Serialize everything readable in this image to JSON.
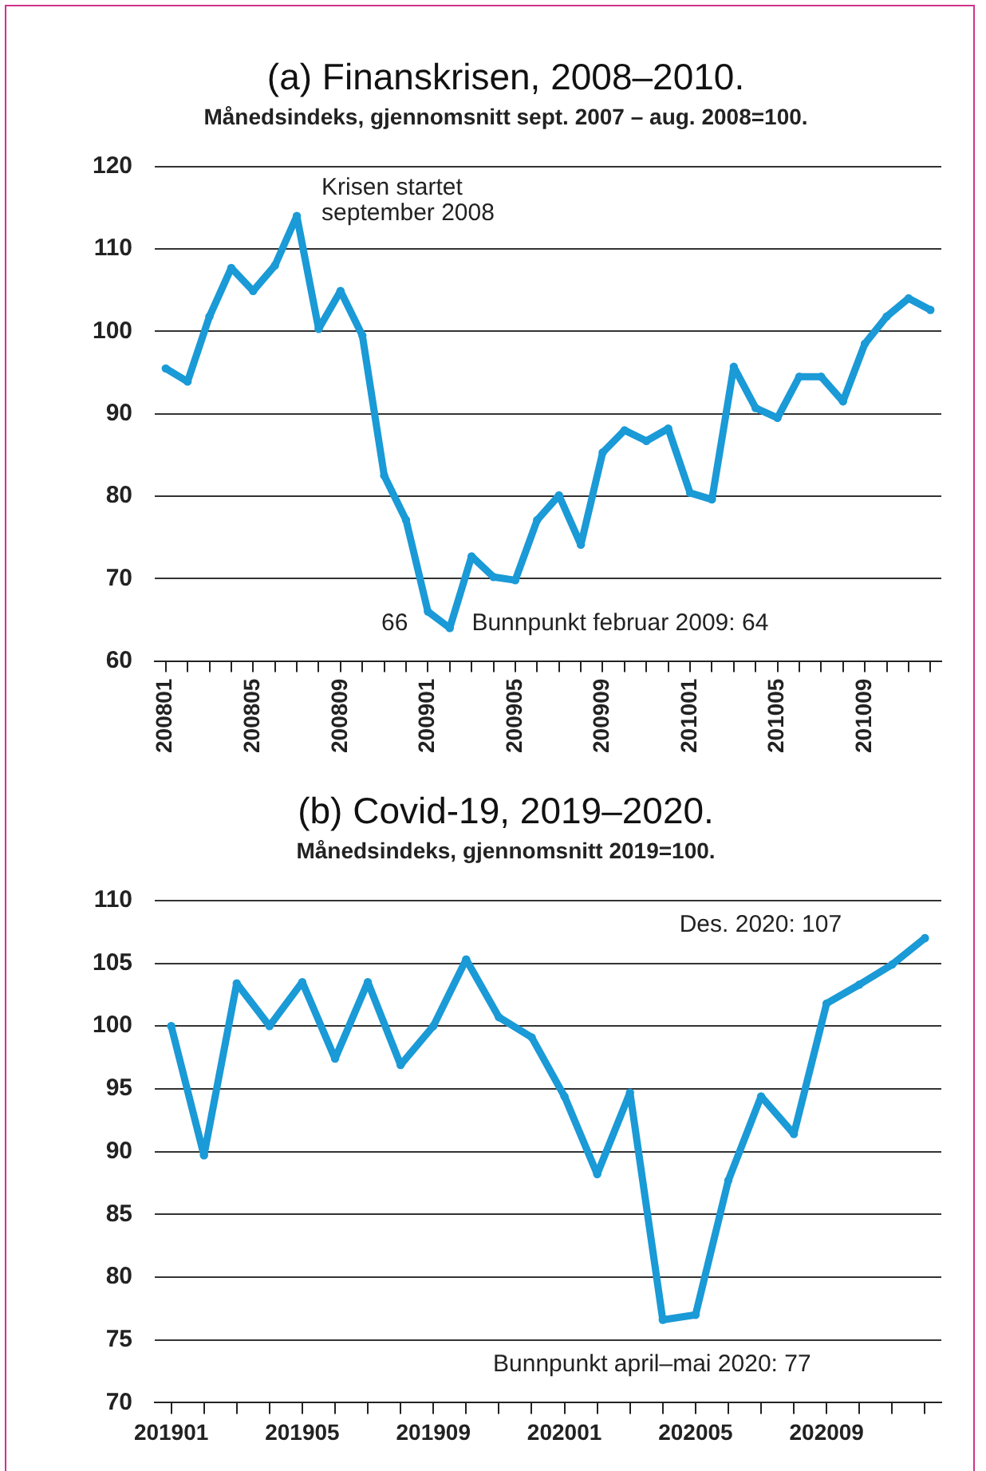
{
  "chart_data": [
    {
      "type": "line",
      "title": "(a) Finanskrisen, 2008–2010.",
      "subtitle": "Månedsindeks, gjennomsnitt sept. 2007 – aug. 2008=100.",
      "categories": [
        "200801",
        null,
        null,
        null,
        "200805",
        null,
        null,
        null,
        "200809",
        null,
        null,
        null,
        "200901",
        null,
        null,
        null,
        "200905",
        null,
        null,
        null,
        "200909",
        null,
        null,
        null,
        "201001",
        null,
        null,
        null,
        "201005",
        null,
        null,
        null,
        "201009",
        null,
        null,
        null
      ],
      "series": [
        {
          "color": "#1a9ad6",
          "values": [
            95.5,
            93.9,
            101.8,
            107.7,
            104.9,
            108.0,
            114.0,
            100.3,
            104.9,
            99.5,
            82.5,
            77.1,
            66,
            64,
            72.7,
            70.2,
            69.8,
            77.1,
            80.1,
            74.1,
            85.3,
            88.0,
            86.7,
            88.2,
            80.4,
            79.6,
            95.7,
            90.7,
            89.5,
            94.5,
            94.5,
            91.5,
            98.5,
            101.8,
            104.0,
            102.6
          ]
        }
      ],
      "ylim": [
        60,
        120
      ],
      "yticks": [
        60,
        70,
        80,
        90,
        100,
        110,
        120
      ],
      "grid": "y",
      "legend": false,
      "marker": "circle",
      "line_style": "solid",
      "annotations": [
        "Krisen startet september 2008",
        "66",
        "Bunnpunkt februar 2009: 64"
      ]
    },
    {
      "type": "line",
      "title": "(b) Covid-19, 2019–2020.",
      "subtitle": "Månedsindeks, gjennomsnitt 2019=100.",
      "categories": [
        "201901",
        null,
        null,
        null,
        "201905",
        null,
        null,
        null,
        "201909",
        null,
        null,
        null,
        "202001",
        null,
        null,
        null,
        "202005",
        null,
        null,
        null,
        "202009",
        null,
        null,
        null
      ],
      "series": [
        {
          "color": "#1a9ad6",
          "values": [
            100,
            89.7,
            103.4,
            100.0,
            103.5,
            97.4,
            103.5,
            96.9,
            100.0,
            105.3,
            100.7,
            99.1,
            94.4,
            88.2,
            94.7,
            76.6,
            77,
            87.7,
            94.4,
            91.4,
            101.8,
            103.3,
            104.9,
            107
          ]
        }
      ],
      "ylim": [
        70,
        110
      ],
      "yticks": [
        70,
        75,
        80,
        85,
        90,
        95,
        100,
        105,
        110
      ],
      "grid": "y",
      "legend": false,
      "marker": "circle",
      "line_style": "solid",
      "annotations": [
        "Des. 2020: 107",
        "Bunnpunkt april–mai 2020: 77"
      ]
    }
  ]
}
